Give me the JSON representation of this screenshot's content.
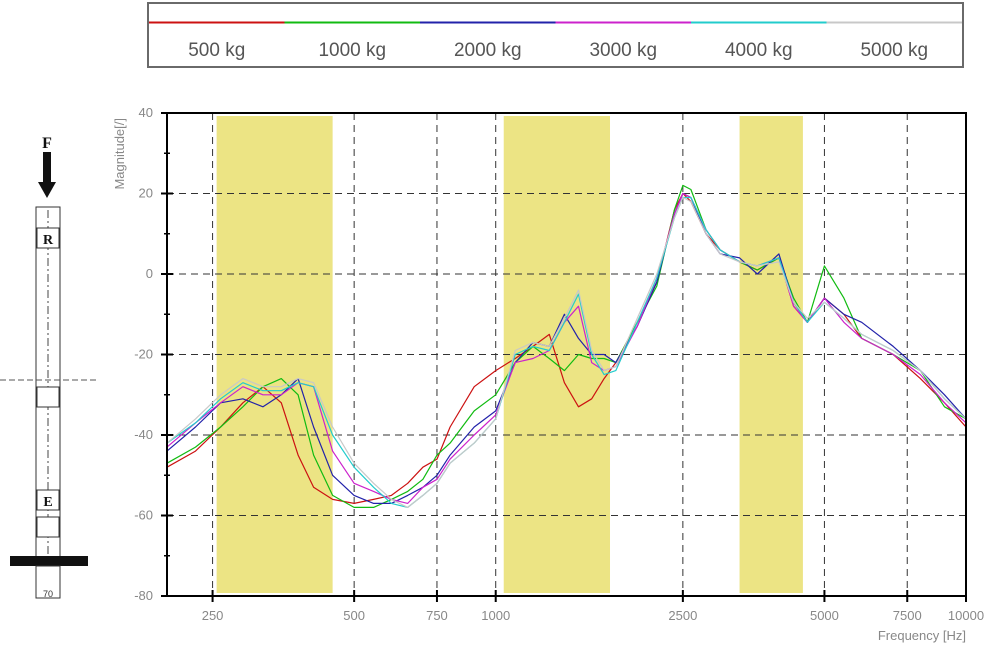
{
  "legend": {
    "items": [
      {
        "label": "500 kg",
        "color": "#cc1111"
      },
      {
        "label": "1000 kg",
        "color": "#11bb11"
      },
      {
        "label": "2000 kg",
        "color": "#2222aa"
      },
      {
        "label": "3000 kg",
        "color": "#cc22cc"
      },
      {
        "label": "4000 kg",
        "color": "#22cccc"
      },
      {
        "label": "5000 kg",
        "color": "#c8c8c8"
      }
    ]
  },
  "diagram": {
    "force_label": "F",
    "top_marker": "R",
    "bottom_marker": "E",
    "base_label": "70"
  },
  "chart_data": {
    "type": "line",
    "xscale": "log",
    "xlim": [
      200,
      10000
    ],
    "ylim": [
      -80,
      40
    ],
    "xlabel": "Frequency [Hz]",
    "ylabel": "Magnitude[/]",
    "x_ticks": [
      250,
      500,
      750,
      1000,
      2500,
      5000,
      7500,
      10000
    ],
    "x_tick_labels": [
      "250",
      "500",
      "750",
      "1000",
      "2500",
      "5000",
      "7500",
      "10000"
    ],
    "y_ticks": [
      -80,
      -60,
      -40,
      -20,
      0,
      20,
      40
    ],
    "y_tick_labels": [
      "-80",
      "-60",
      "-40",
      "-20",
      "0",
      "20",
      "40"
    ],
    "grid": true,
    "highlight_bands": [
      [
        255,
        450
      ],
      [
        1040,
        1750
      ],
      [
        3300,
        4500
      ]
    ],
    "highlight_color": "#ece484",
    "x": [
      200,
      230,
      260,
      290,
      320,
      350,
      380,
      410,
      450,
      500,
      550,
      600,
      650,
      700,
      750,
      800,
      900,
      1000,
      1100,
      1200,
      1300,
      1400,
      1500,
      1600,
      1700,
      1800,
      2000,
      2200,
      2400,
      2500,
      2600,
      2800,
      3000,
      3300,
      3600,
      4000,
      4300,
      4600,
      5000,
      5500,
      6000,
      7000,
      8000,
      9000,
      10000
    ],
    "series": [
      {
        "name": "500 kg",
        "values": [
          -48,
          -44,
          -38,
          -32,
          -28,
          -32,
          -45,
          -53,
          -56,
          -57,
          -56,
          -55,
          -52,
          -48,
          -46,
          -38,
          -28,
          -24,
          -21,
          -18,
          -15,
          -27,
          -33,
          -31,
          -26,
          -22,
          -12,
          -2,
          16,
          20,
          18,
          10,
          6,
          3,
          1,
          4,
          -8,
          -12,
          -6,
          -10,
          -16,
          -20,
          -26,
          -32,
          -38
        ]
      },
      {
        "name": "1000 kg",
        "values": [
          -47,
          -43,
          -38,
          -33,
          -28,
          -26,
          -30,
          -45,
          -55,
          -58,
          -58,
          -56,
          -54,
          -51,
          -45,
          -42,
          -34,
          -30,
          -22,
          -18,
          -21,
          -24,
          -20,
          -21,
          -21,
          -22,
          -12,
          -3,
          16,
          22,
          21,
          11,
          6,
          3,
          1,
          4,
          -6,
          -12,
          2,
          -6,
          -16,
          -20,
          -24,
          -33,
          -36
        ]
      },
      {
        "name": "2000 kg",
        "values": [
          -44,
          -38,
          -32,
          -31,
          -33,
          -30,
          -26,
          -38,
          -50,
          -55,
          -57,
          -57,
          -55,
          -53,
          -50,
          -45,
          -38,
          -34,
          -22,
          -17,
          -18,
          -10,
          -16,
          -20,
          -20,
          -22,
          -13,
          -2,
          15,
          20,
          19,
          10,
          5,
          4,
          0,
          5,
          -7,
          -12,
          -6,
          -10,
          -12,
          -18,
          -24,
          -30,
          -36
        ]
      },
      {
        "name": "3000 kg",
        "values": [
          -43,
          -37,
          -32,
          -28,
          -30,
          -30,
          -27,
          -28,
          -44,
          -52,
          -54,
          -56,
          -57,
          -53,
          -51,
          -46,
          -40,
          -35,
          -22,
          -21,
          -19,
          -12,
          -8,
          -22,
          -24,
          -23,
          -13,
          -1,
          15,
          20,
          19,
          11,
          6,
          3,
          2,
          4,
          -8,
          -12,
          -6,
          -12,
          -16,
          -20,
          -25,
          -32,
          -37
        ]
      },
      {
        "name": "4000 kg",
        "values": [
          -42,
          -37,
          -31,
          -27,
          -29,
          -29,
          -27,
          -28,
          -40,
          -48,
          -53,
          -57,
          -58,
          -55,
          -52,
          -47,
          -42,
          -36,
          -20,
          -18,
          -19,
          -12,
          -5,
          -20,
          -25,
          -24,
          -12,
          -1,
          14,
          19,
          19,
          11,
          6,
          3,
          2,
          4,
          -7,
          -12,
          -7,
          -11,
          -15,
          -19,
          -24,
          -31,
          -36
        ]
      },
      {
        "name": "5000 kg",
        "values": [
          -42,
          -36,
          -30,
          -26,
          -28,
          -28,
          -26,
          -27,
          -38,
          -47,
          -52,
          -56,
          -58,
          -55,
          -52,
          -47,
          -42,
          -36,
          -19,
          -17,
          -18,
          -11,
          -4,
          -19,
          -24,
          -23,
          -11,
          0,
          14,
          19,
          18,
          10,
          5,
          3,
          2,
          3,
          -7,
          -11,
          -7,
          -11,
          -15,
          -19,
          -24,
          -31,
          -36
        ]
      }
    ]
  }
}
